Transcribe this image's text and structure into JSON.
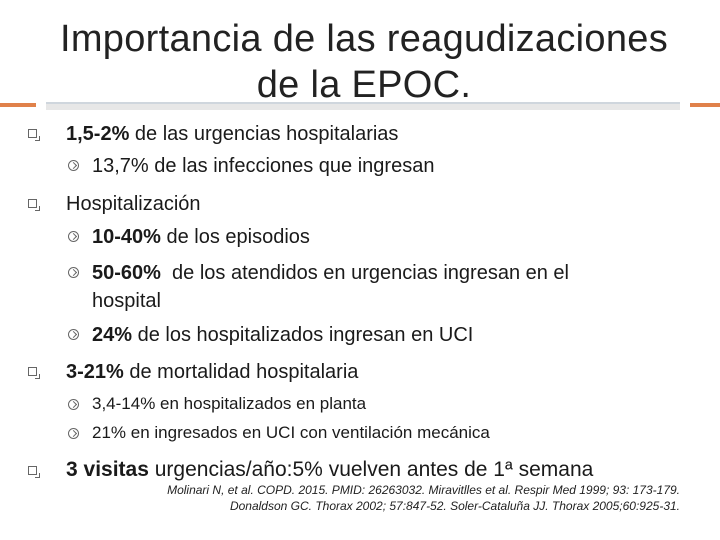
{
  "title": {
    "line1": "Importancia de las reagudizaciones",
    "line2": "de la EPOC."
  },
  "bullets": {
    "b1": {
      "strong": "1,5-2%",
      "text": " de las urgencias hospitalarias"
    },
    "b1_sub1": {
      "text": "13,7% de las infecciones que ingresan"
    },
    "b2": {
      "text": "Hospitalización"
    },
    "b2_sub1": {
      "strong": "10-40%",
      "text": " de los episodios"
    },
    "b2_sub2": {
      "strong": "50-60%",
      "text": "  de los atendidos en urgencias ingresan en el",
      "cont": "hospital"
    },
    "b2_sub3": {
      "strong": "24%",
      "text": " de los hospitalizados ingresan en UCI"
    },
    "b3": {
      "strong": "3-21%",
      "text": " de mortalidad hospitalaria"
    },
    "b3_sub1": {
      "text": "3,4-14% en hospitalizados en planta"
    },
    "b3_sub2": {
      "text": "21% en ingresados en UCI con ventilación mecánica"
    },
    "b4": {
      "strong": "3 visitas",
      "text": " urgencias/año:5% vuelven antes de 1ª semana"
    }
  },
  "reference": {
    "line1": "Molinari N, et al. COPD. 2015. PMID: 26263032. Miravitlles et al. Respir Med 1999; 93: 173-179.",
    "line2": "Donaldson GC. Thorax 2002; 57:847-52. Soler-Cataluña JJ. Thorax 2005;60:925-31."
  },
  "colors": {
    "accent": "#e0814a",
    "rule": "#e7e7e7",
    "text": "#1a1a1a"
  },
  "icons": {
    "level1": "square-bullet-icon",
    "level2": "circle-arrow-bullet-icon"
  }
}
